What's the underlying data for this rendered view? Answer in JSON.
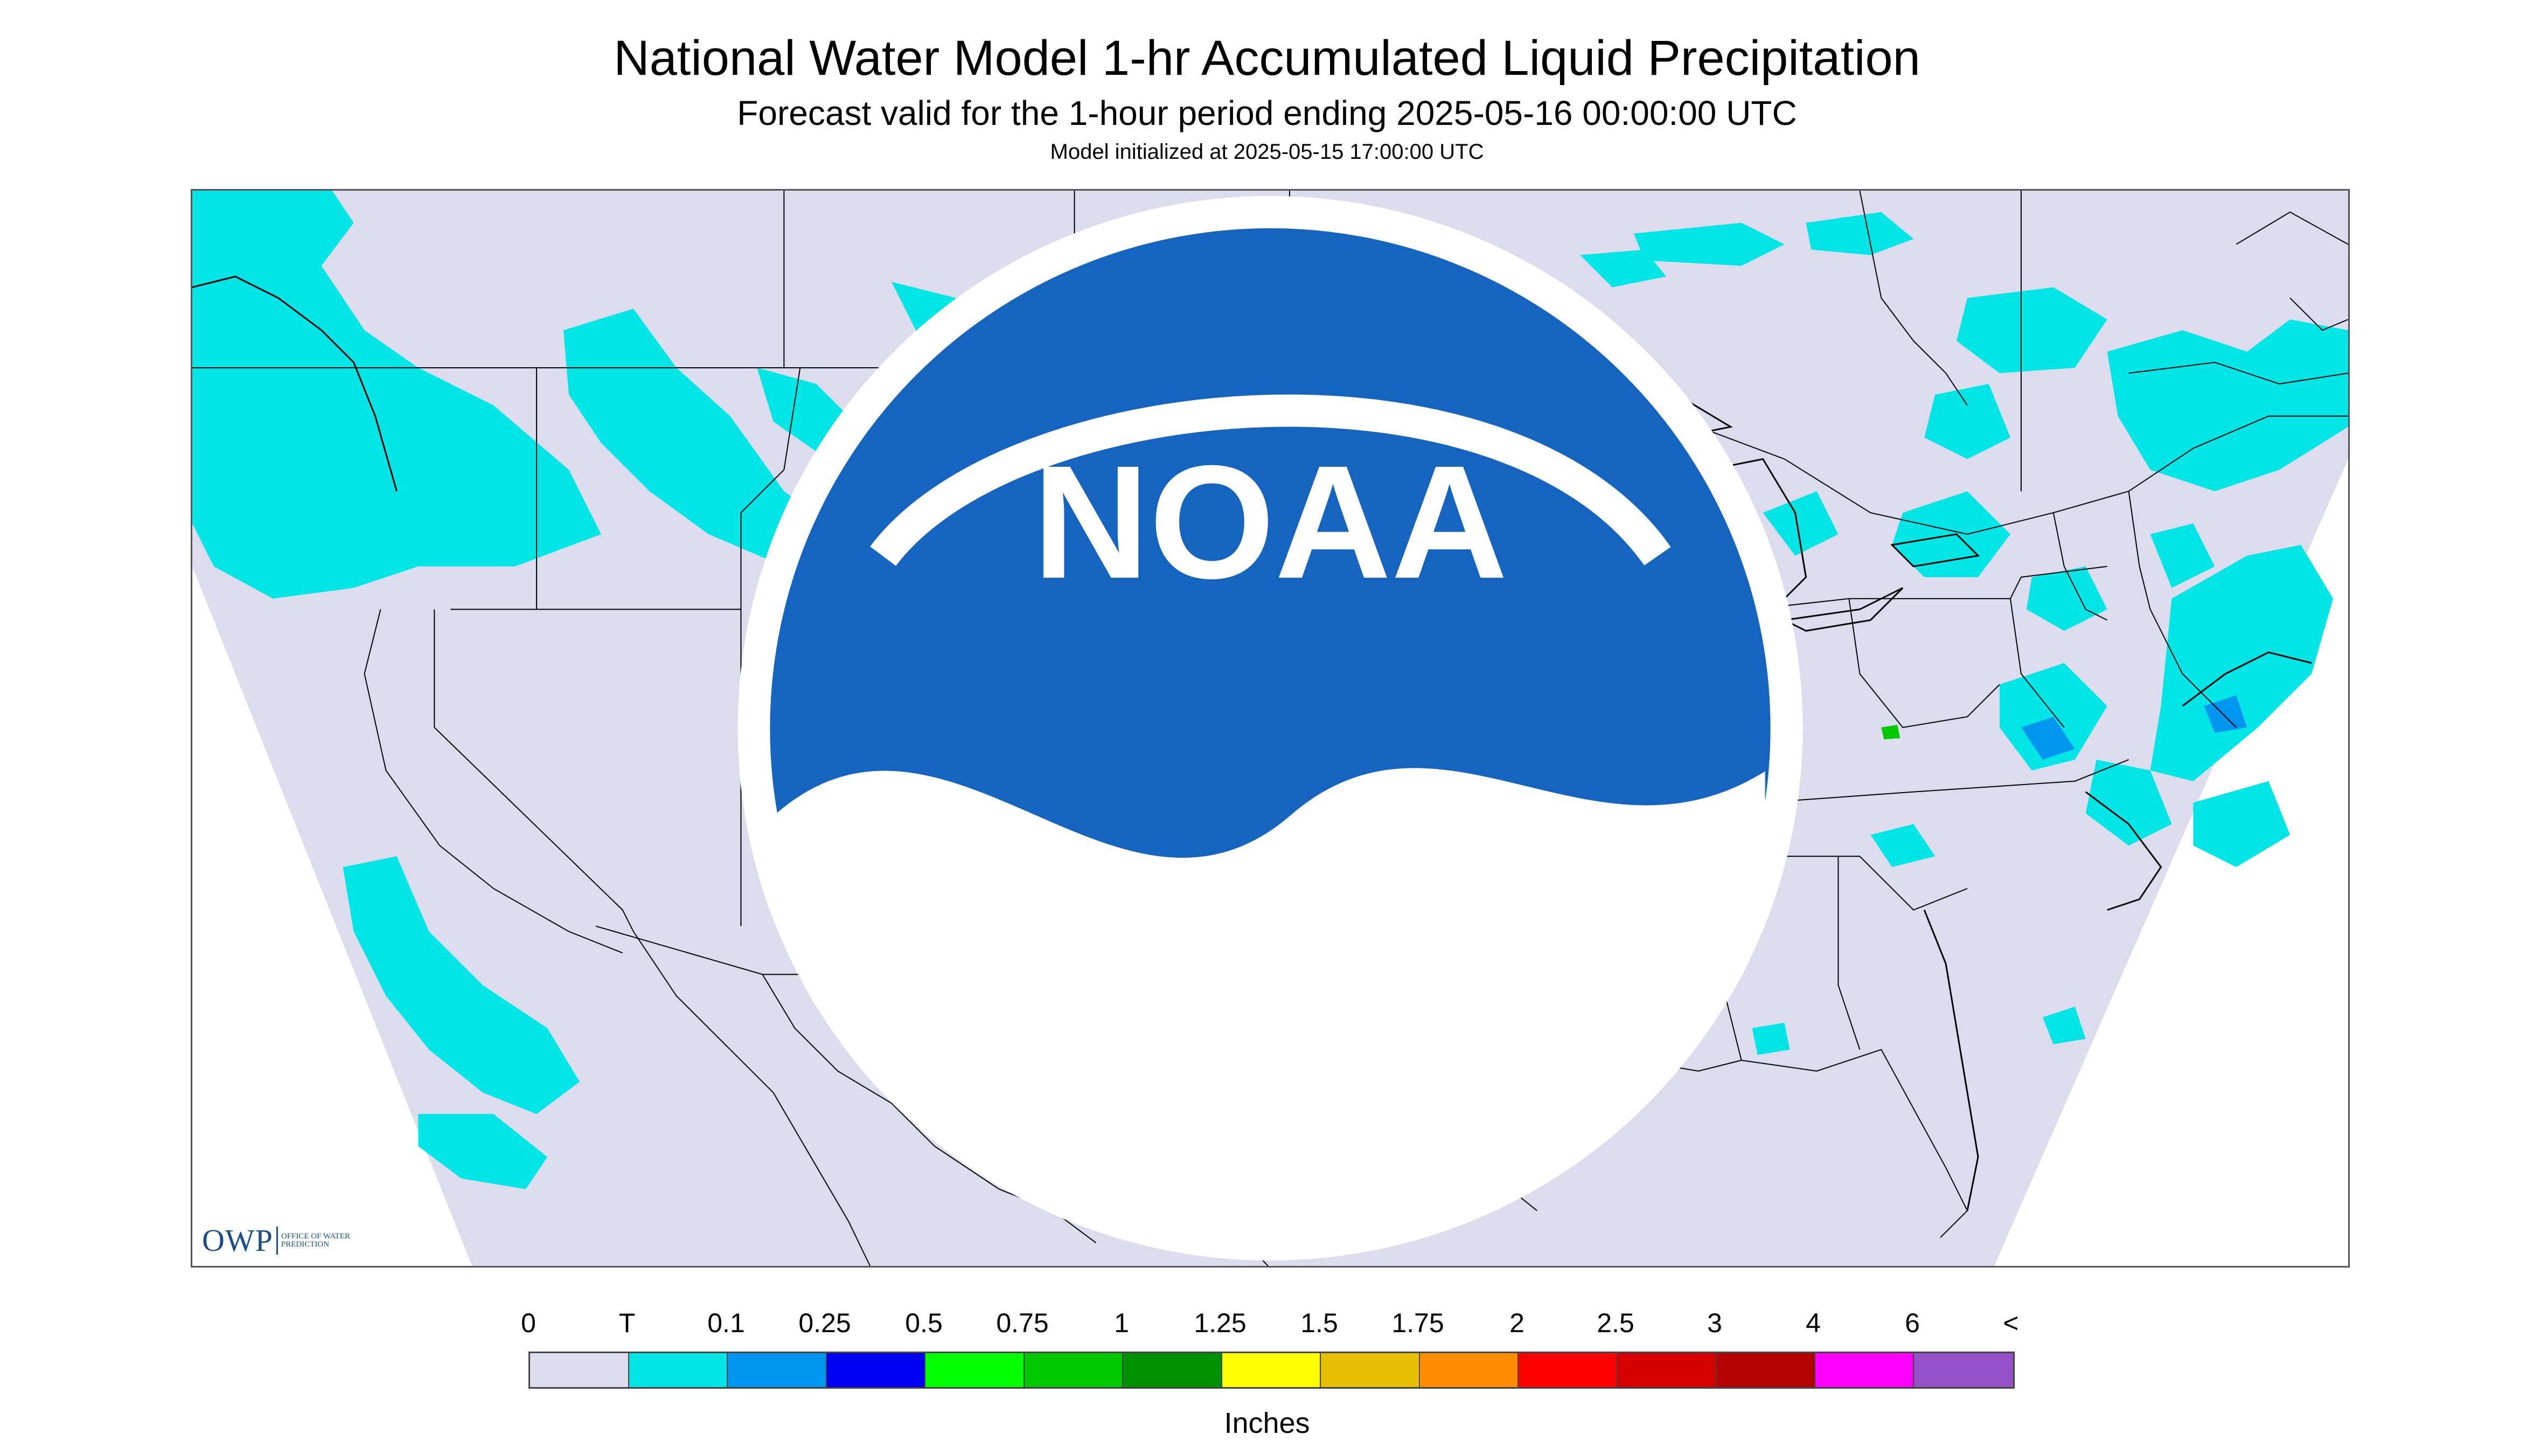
{
  "header": {
    "title": "National Water Model 1-hr Accumulated Liquid Precipitation",
    "subtitle": "Forecast valid for the 1-hour period ending 2025-05-16 00:00:00 UTC",
    "init": "Model initialized at 2025-05-15 17:00:00 UTC"
  },
  "logos": {
    "owp_mark": "OWP",
    "owp_name": "OFFICE OF WATER PREDICTION",
    "noaa_text": "NOAA"
  },
  "legend": {
    "labels": [
      "0",
      "T",
      "0.1",
      "0.25",
      "0.5",
      "0.75",
      "1",
      "1.25",
      "1.5",
      "1.75",
      "2",
      "2.5",
      "3",
      "4",
      "6",
      "<"
    ],
    "colors": [
      "#dcdcee",
      "#00e5e5",
      "#0096f0",
      "#0000f5",
      "#00ff00",
      "#00c800",
      "#009100",
      "#ffff00",
      "#e6be00",
      "#ff8c00",
      "#ff0000",
      "#d70000",
      "#b40000",
      "#ff00ff",
      "#9650c8"
    ],
    "unit": "Inches"
  },
  "map_colors": {
    "background": "#dcdcee",
    "outside": "#ffffff",
    "border": "#000000"
  }
}
